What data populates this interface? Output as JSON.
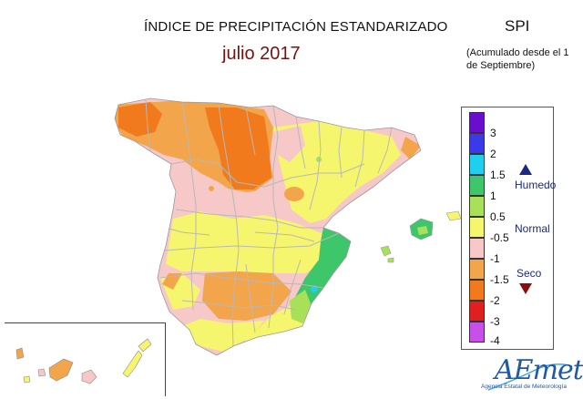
{
  "header": {
    "title": "ÍNDICE DE PRECIPITACIÓN ESTANDARIZADO",
    "subtitle": "julio 2017",
    "index_label": "SPI",
    "note": "(Acumulado desde el 1 de Septiembre)"
  },
  "legend": {
    "ticks": [
      "3",
      "2",
      "1.5",
      "1",
      "0.5",
      "-0.5",
      "-1",
      "-1.5",
      "-2",
      "-3",
      "-4"
    ],
    "colors": [
      "#6a0dcc",
      "#3a3ae8",
      "#1ecfee",
      "#3dc76a",
      "#a8e05a",
      "#f6f66e",
      "#f7c8c8",
      "#f2a54a",
      "#f07a1c",
      "#e02020",
      "#c650e8"
    ],
    "category_humid": "Humedo",
    "category_normal": "Normal",
    "category_dry": "Seco",
    "humid_marker_color": "#1b2a80",
    "dry_marker_color": "#8b0e0e"
  },
  "map_colors": {
    "very_wet": "#3dc76a",
    "wet": "#a8e05a",
    "normal": "#f6f66e",
    "dry": "#f7c8c8",
    "moderately_dry": "#f2a54a",
    "severely_dry": "#f07a1c",
    "light_blue": "#1ecfee",
    "borders": "#b8b8b8"
  },
  "logo": {
    "text": "AEmet",
    "subtext": "Agencia Estatal de Meteorología"
  }
}
